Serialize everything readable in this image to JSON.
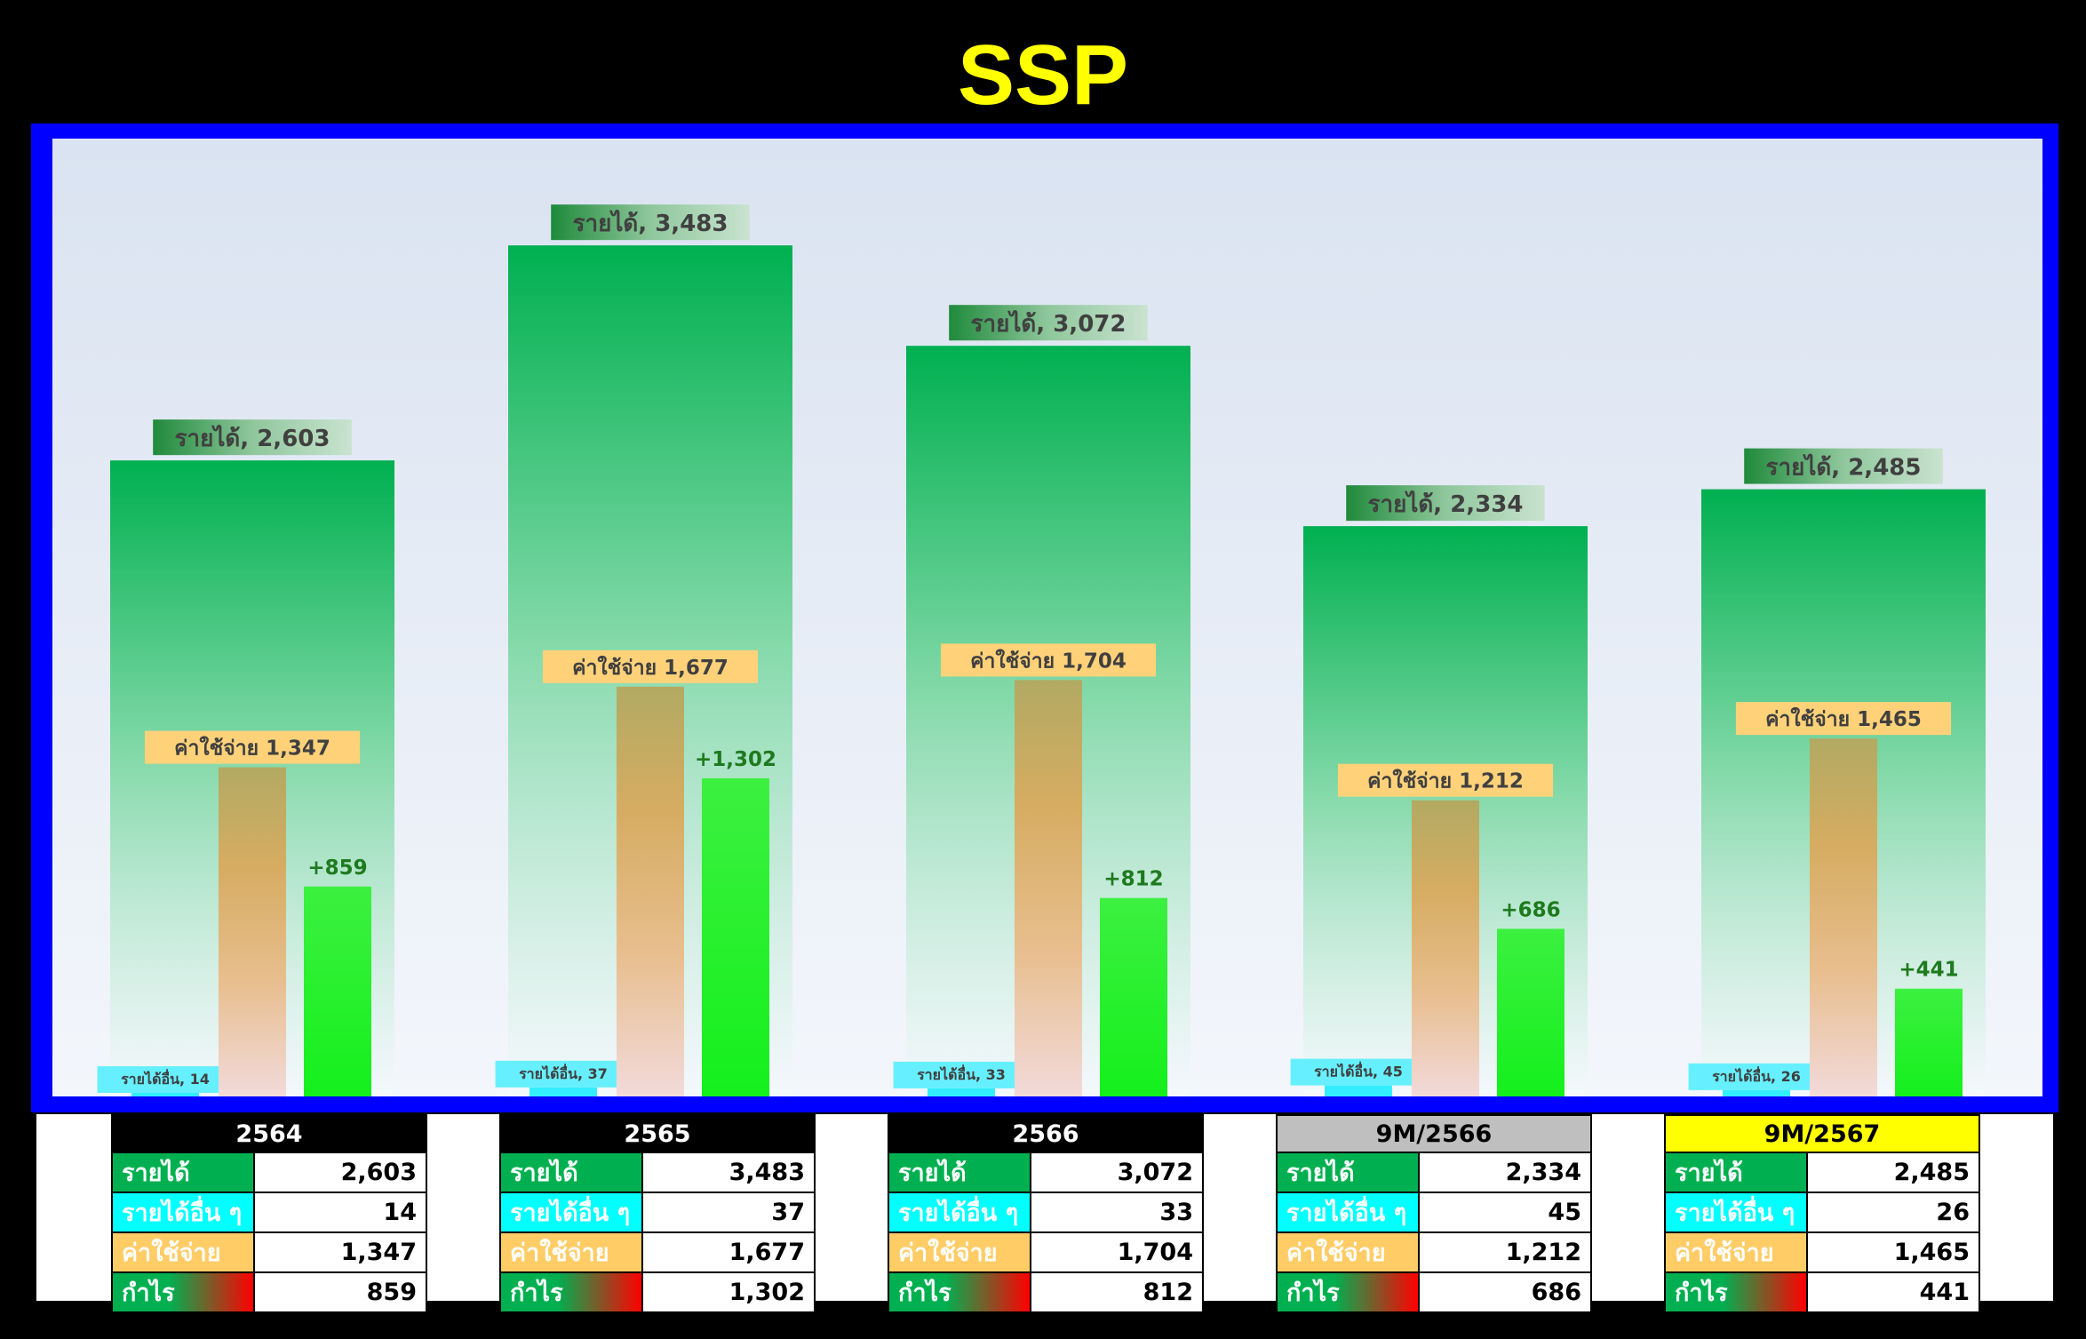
{
  "title": "SSP",
  "colors": {
    "revenue": "#00b050",
    "other_income": "#00ffff",
    "expense": "#ffc000",
    "profit": "#00ff00",
    "frame": "#0000ff",
    "title": "#ffff00"
  },
  "chart_data": {
    "type": "bar",
    "title": "SSP",
    "categories": [
      "2564",
      "2565",
      "2566",
      "9M/2566",
      "9M/2567"
    ],
    "series": [
      {
        "name": "รายได้",
        "values": [
          2603,
          3483,
          3072,
          2334,
          2485
        ]
      },
      {
        "name": "รายได้อื่น",
        "values": [
          14,
          37,
          33,
          45,
          26
        ]
      },
      {
        "name": "ค่าใช้จ่าย",
        "values": [
          1347,
          1677,
          1704,
          1212,
          1465
        ]
      },
      {
        "name": "กำไร",
        "values": [
          859,
          1302,
          812,
          686,
          441
        ]
      }
    ],
    "data_labels": {
      "revenue": [
        "รายได้, 2,603",
        "รายได้, 3,483",
        "รายได้, 3,072",
        "รายได้, 2,334",
        "รายได้, 2,485"
      ],
      "other_income": [
        "รายได้อื่น, 14",
        "รายได้อื่น, 37",
        "รายได้อื่น, 33",
        "รายได้อื่น, 45",
        "รายได้อื่น, 26"
      ],
      "expense": [
        "ค่าใช้จ่าย 1,347",
        "ค่าใช้จ่าย 1,677",
        "ค่าใช้จ่าย 1,704",
        "ค่าใช้จ่าย 1,212",
        "ค่าใช้จ่าย 1,465"
      ],
      "profit": [
        "+859",
        "+1,302",
        "+812",
        "+686",
        "+441"
      ]
    },
    "ylim": [
      0,
      3920
    ],
    "grid": false,
    "legend": "none"
  },
  "tables": [
    {
      "period": "2564",
      "header_style": "black",
      "rows": [
        {
          "label": "รายได้",
          "value": "2,603"
        },
        {
          "label": "รายได้อื่น ๆ",
          "value": "14"
        },
        {
          "label": "ค่าใช้จ่าย",
          "value": "1,347"
        },
        {
          "label": "กำไร",
          "value": "859"
        }
      ]
    },
    {
      "period": "2565",
      "header_style": "black",
      "rows": [
        {
          "label": "รายได้",
          "value": "3,483"
        },
        {
          "label": "รายได้อื่น ๆ",
          "value": "37"
        },
        {
          "label": "ค่าใช้จ่าย",
          "value": "1,677"
        },
        {
          "label": "กำไร",
          "value": "1,302"
        }
      ]
    },
    {
      "period": "2566",
      "header_style": "black",
      "rows": [
        {
          "label": "รายได้",
          "value": "3,072"
        },
        {
          "label": "รายได้อื่น ๆ",
          "value": "33"
        },
        {
          "label": "ค่าใช้จ่าย",
          "value": "1,704"
        },
        {
          "label": "กำไร",
          "value": "812"
        }
      ]
    },
    {
      "period": "9M/2566",
      "header_style": "gray",
      "rows": [
        {
          "label": "รายได้",
          "value": "2,334"
        },
        {
          "label": "รายได้อื่น ๆ",
          "value": "45"
        },
        {
          "label": "ค่าใช้จ่าย",
          "value": "1,212"
        },
        {
          "label": "กำไร",
          "value": "686"
        }
      ]
    },
    {
      "period": "9M/2567",
      "header_style": "yellow",
      "rows": [
        {
          "label": "รายได้",
          "value": "2,485"
        },
        {
          "label": "รายได้อื่น ๆ",
          "value": "26"
        },
        {
          "label": "ค่าใช้จ่าย",
          "value": "1,465"
        },
        {
          "label": "กำไร",
          "value": "441"
        }
      ]
    }
  ]
}
